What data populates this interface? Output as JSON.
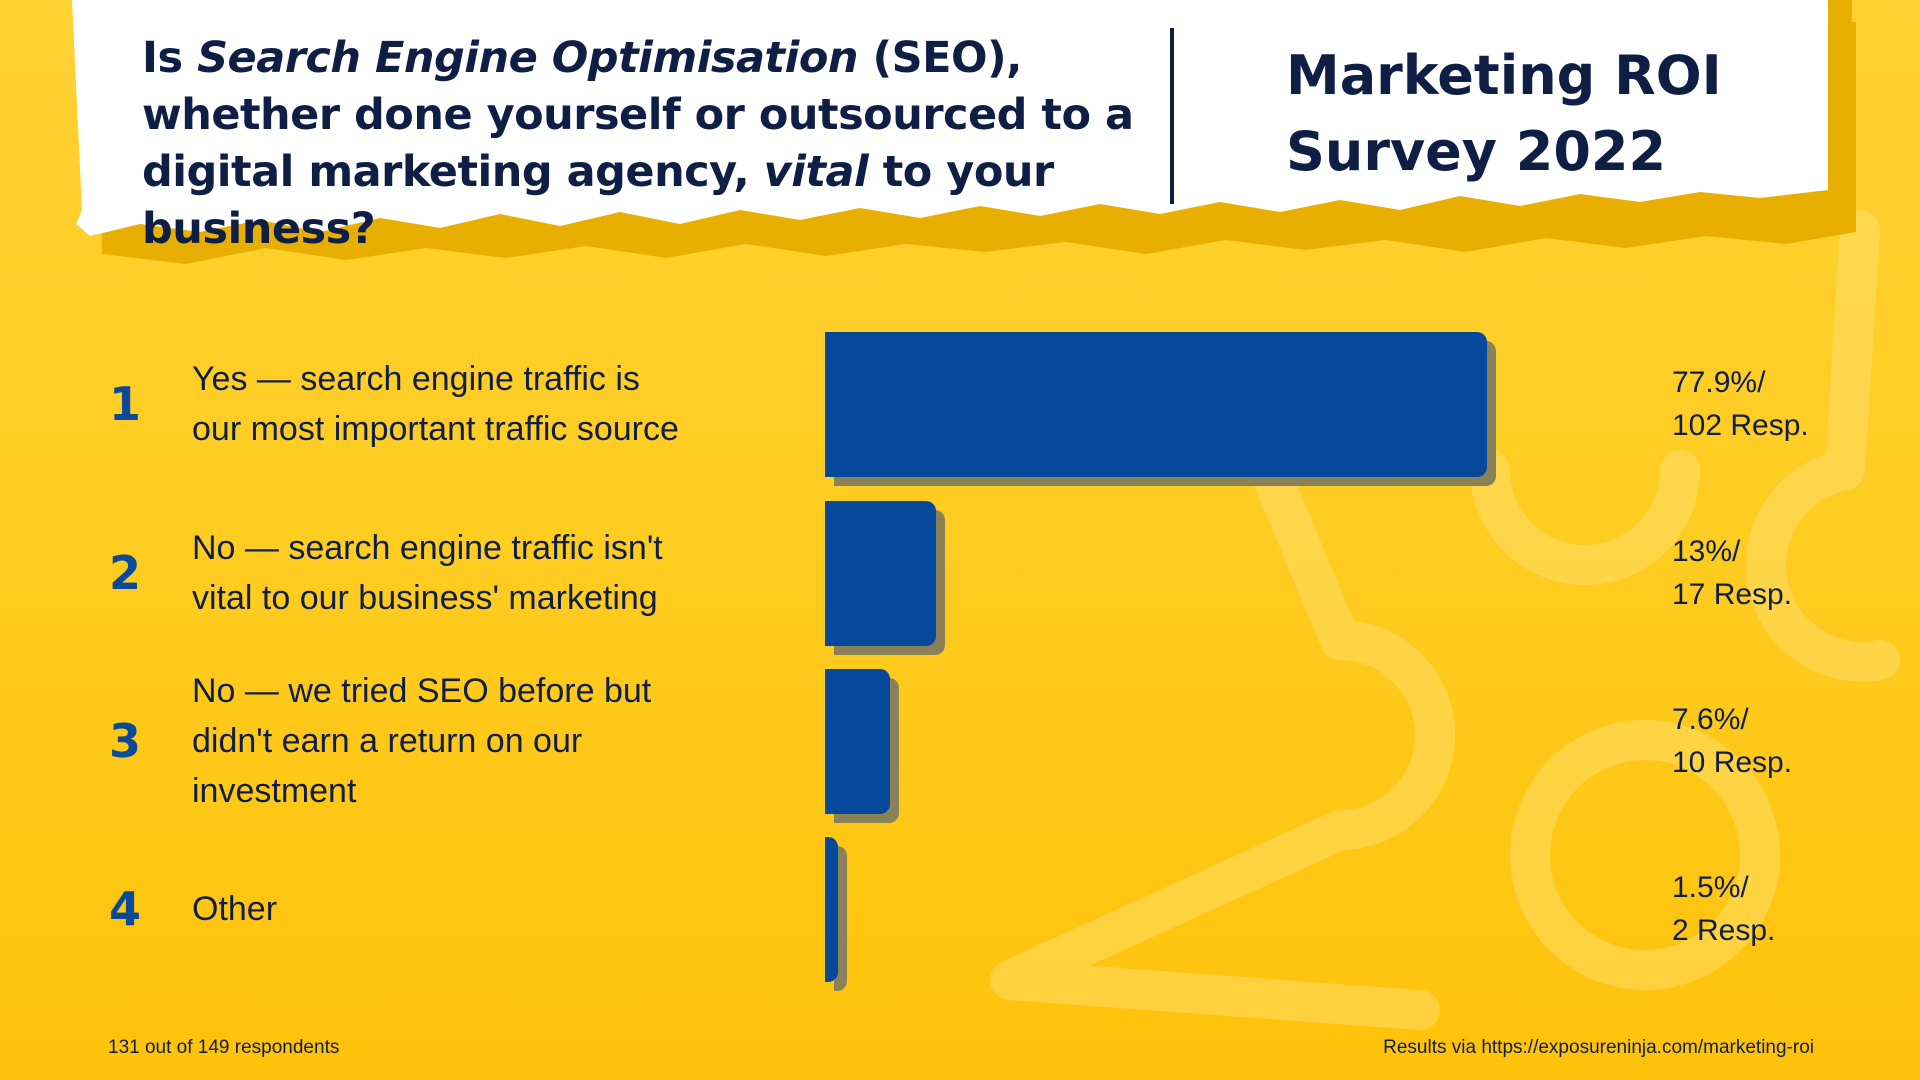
{
  "header": {
    "question": {
      "part1": "Is ",
      "em1": "Search Engine Optimisation",
      "part2": " (SEO), whether done yourself or outsourced to a digital marketing agency, ",
      "em2": "vital",
      "part3": " to your business?"
    },
    "survey_title_line1": "Marketing ROI",
    "survey_title_line2": "Survey 2022"
  },
  "chart_data": {
    "type": "bar",
    "orientation": "horizontal",
    "categories": [
      "Yes — search engine traffic is our most important traffic source",
      "No — search engine traffic isn't vital to our business' marketing",
      "No — we tried SEO before but didn't earn a return on our investment",
      "Other"
    ],
    "values": [
      77.9,
      13,
      7.6,
      1.5
    ],
    "responses": [
      102,
      17,
      10,
      2
    ],
    "xlim": [
      0,
      100
    ],
    "value_unit": "%",
    "grid": false,
    "legend": "none",
    "colors": {
      "bar": "#06489A",
      "shadow": "#8A8256"
    }
  },
  "rows": [
    {
      "num": "1",
      "label_line1": "Yes — search engine traffic is",
      "label_line2": "our most important traffic source",
      "label_line3": "",
      "value_line1": "77.9%/",
      "value_line2": "102 Resp."
    },
    {
      "num": "2",
      "label_line1": "No — search engine traffic isn't",
      "label_line2": "vital to our business' marketing",
      "label_line3": "",
      "value_line1": "13%/",
      "value_line2": "17 Resp."
    },
    {
      "num": "3",
      "label_line1": "No — we tried SEO before but",
      "label_line2": "didn't earn a return on our",
      "label_line3": "investment",
      "value_line1": "7.6%/",
      "value_line2": "10 Resp."
    },
    {
      "num": "4",
      "label_line1": "Other",
      "label_line2": "",
      "label_line3": "",
      "value_line1": "1.5%/",
      "value_line2": "2 Resp."
    }
  ],
  "footer": {
    "left": "131 out of 149 respondents",
    "right": "Results via https://exposureninja.com/marketing-roi"
  },
  "colors": {
    "background": "#FFCB1F",
    "paper": "#FFFFFF",
    "paper_shadow": "#E8AF00",
    "text_dark": "#0F1E44",
    "accent_blue": "#0B4A98"
  }
}
